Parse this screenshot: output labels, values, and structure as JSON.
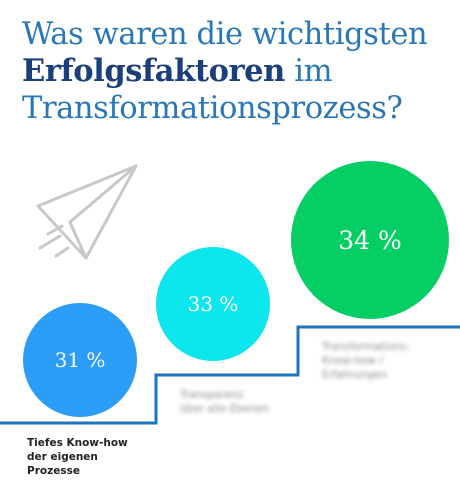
{
  "heading": {
    "line1": "Was waren die wichtigsten",
    "line2_bold": "Erfolgsfaktoren",
    "line2_rest": " im",
    "line3": "Transformationsprozess?"
  },
  "icons": {
    "decoration": "paper-plane-icon"
  },
  "colors": {
    "title": "#2a77b8",
    "title_bold": "#1b3f7a",
    "stairs": "#1e74be",
    "plane": "#c8c8c8"
  },
  "chart_data": {
    "type": "bubble",
    "title": "Was waren die wichtigsten Erfolgsfaktoren im Transformationsprozess?",
    "unit": "%",
    "categories": [
      [
        "Tiefes Know-how",
        "der eigenen",
        "Prozesse"
      ],
      [
        "Transparenz",
        "über alle Ebenen"
      ],
      [
        "Transformations-",
        "Know-how /",
        "Erfahrungen"
      ]
    ],
    "values": [
      31,
      33,
      34
    ],
    "labels": [
      "31 %",
      "33 %",
      "34 %"
    ],
    "colors": [
      "#2b9df6",
      "#0ee6ee",
      "#05cf64"
    ]
  }
}
